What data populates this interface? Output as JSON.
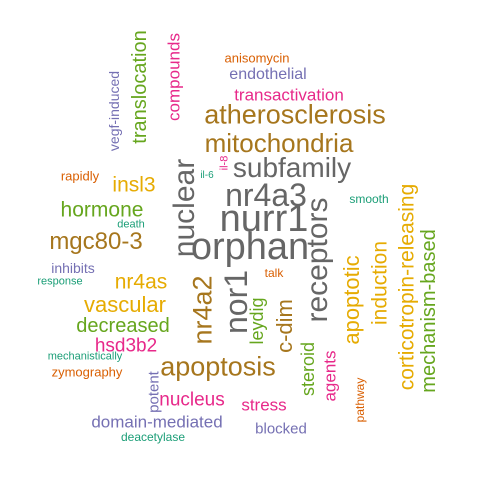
{
  "palette": {
    "green": "#66a61e",
    "teal": "#1b9e77",
    "orange": "#d95f02",
    "purple": "#7570b3",
    "magenta": "#e7298a",
    "gold": "#e6ab02",
    "brown": "#a6761d",
    "gray": "#666666"
  },
  "words": [
    {
      "text": "nurr1",
      "color": "gray"
    },
    {
      "text": "orphan",
      "color": "gray"
    },
    {
      "text": "nr4a3",
      "color": "gray"
    },
    {
      "text": "subfamily",
      "color": "gray"
    },
    {
      "text": "receptors",
      "color": "gray"
    },
    {
      "text": "nor1",
      "color": "gray"
    },
    {
      "text": "nuclear",
      "color": "gray"
    },
    {
      "text": "mitochondria",
      "color": "brown"
    },
    {
      "text": "atherosclerosis",
      "color": "brown"
    },
    {
      "text": "apoptosis",
      "color": "brown"
    },
    {
      "text": "nr4a2",
      "color": "brown"
    },
    {
      "text": "mgc80-3",
      "color": "brown"
    },
    {
      "text": "apoptotic",
      "color": "gold"
    },
    {
      "text": "c-dim",
      "color": "brown"
    },
    {
      "text": "corticotropin-releasing",
      "color": "gold"
    },
    {
      "text": "induction",
      "color": "gold"
    },
    {
      "text": "mechanism-based",
      "color": "green"
    },
    {
      "text": "vascular",
      "color": "gold"
    },
    {
      "text": "nr4as",
      "color": "gold"
    },
    {
      "text": "insl3",
      "color": "gold"
    },
    {
      "text": "hormone",
      "color": "green"
    },
    {
      "text": "decreased",
      "color": "green"
    },
    {
      "text": "translocation",
      "color": "green"
    },
    {
      "text": "leydig",
      "color": "green"
    },
    {
      "text": "steroid",
      "color": "green"
    },
    {
      "text": "nucleus",
      "color": "magenta"
    },
    {
      "text": "compounds",
      "color": "magenta"
    },
    {
      "text": "transactivation",
      "color": "magenta"
    },
    {
      "text": "hsd3b2",
      "color": "magenta"
    },
    {
      "text": "agents",
      "color": "magenta"
    },
    {
      "text": "stress",
      "color": "magenta"
    },
    {
      "text": "domain-mediated",
      "color": "purple"
    },
    {
      "text": "endothelial",
      "color": "purple"
    },
    {
      "text": "vegf-induced",
      "color": "purple"
    },
    {
      "text": "potent",
      "color": "purple"
    },
    {
      "text": "blocked",
      "color": "purple"
    },
    {
      "text": "inhibits",
      "color": "purple"
    },
    {
      "text": "anisomycin",
      "color": "orange"
    },
    {
      "text": "rapidly",
      "color": "orange"
    },
    {
      "text": "zymography",
      "color": "orange"
    },
    {
      "text": "pathway",
      "color": "orange"
    },
    {
      "text": "talk",
      "color": "orange"
    },
    {
      "text": "il-8",
      "color": "magenta"
    },
    {
      "text": "il-6",
      "color": "teal"
    },
    {
      "text": "smooth",
      "color": "teal"
    },
    {
      "text": "death",
      "color": "teal"
    },
    {
      "text": "response",
      "color": "teal"
    },
    {
      "text": "mechanistically",
      "color": "teal"
    },
    {
      "text": "deacetylase",
      "color": "teal"
    }
  ]
}
